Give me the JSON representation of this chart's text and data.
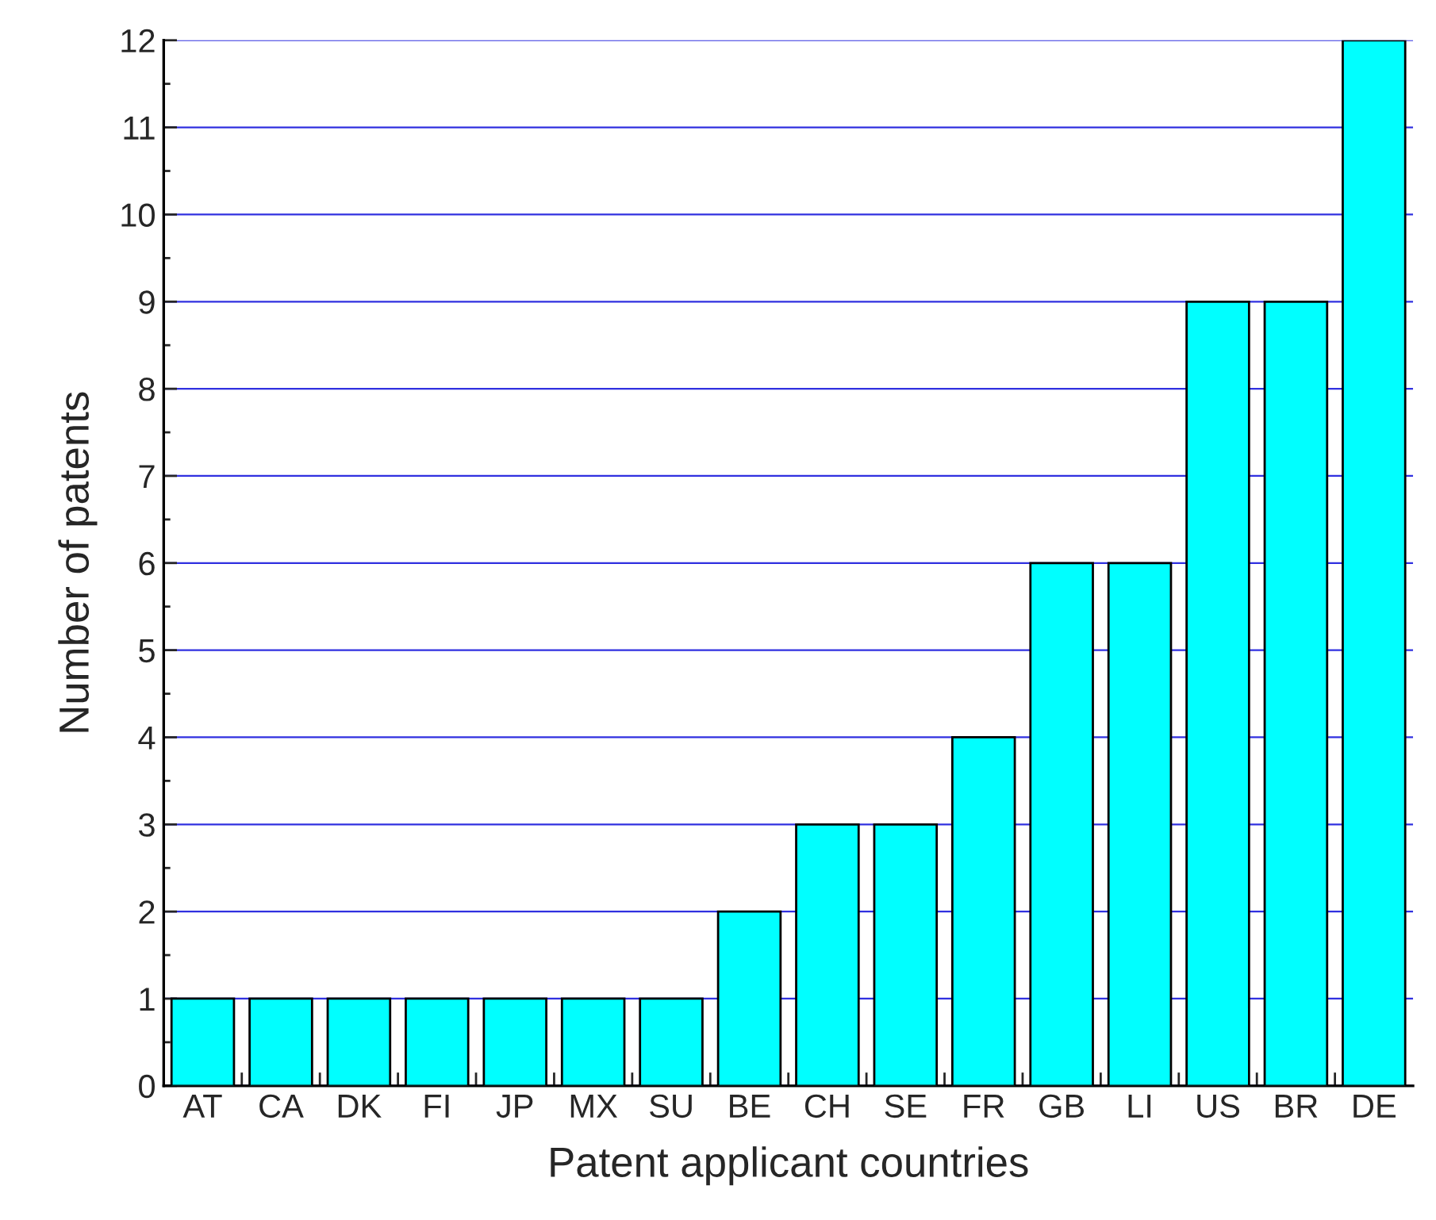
{
  "chart_data": {
    "type": "bar",
    "xlabel": "Patent applicant countries",
    "ylabel": "Number of patents",
    "categories": [
      "AT",
      "CA",
      "DK",
      "FI",
      "JP",
      "MX",
      "SU",
      "BE",
      "CH",
      "SE",
      "FR",
      "GB",
      "LI",
      "US",
      "BR",
      "DE"
    ],
    "values": [
      1,
      1,
      1,
      1,
      1,
      1,
      1,
      2,
      3,
      3,
      4,
      6,
      6,
      9,
      9,
      12
    ],
    "color": "#00ffff",
    "ylim": [
      0,
      12
    ],
    "yticks": [
      0,
      1,
      2,
      3,
      4,
      5,
      6,
      7,
      8,
      9,
      10,
      11,
      12
    ],
    "grid": "y",
    "legend": false
  }
}
